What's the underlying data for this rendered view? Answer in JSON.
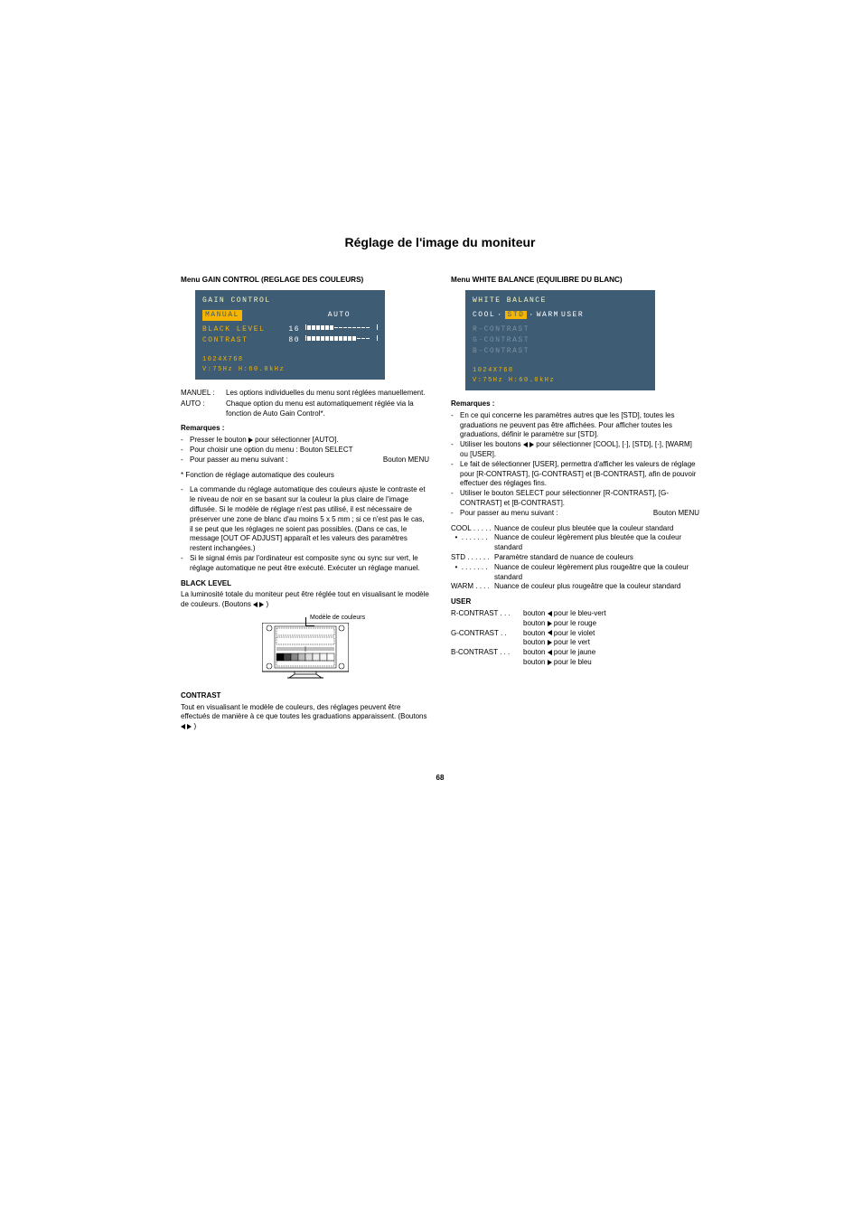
{
  "page": {
    "title": "Réglage de l'image du moniteur",
    "page_number": "68"
  },
  "left": {
    "menu_heading": "Menu GAIN CONTROL (REGLAGE DES COULEURS)",
    "osd": {
      "title": "GAIN CONTROL",
      "mode_manual": "MANUAL",
      "mode_auto": "AUTO",
      "black_level_label": "BLACK LEVEL",
      "black_level_value": "16",
      "black_level_fill": 6,
      "black_level_total": 14,
      "contrast_label": "CONTRAST",
      "contrast_value": "80",
      "contrast_fill": 11,
      "contrast_total": 14,
      "info_line1": "1024X768",
      "info_line2": "V:75Hz   H:60.0kHz"
    },
    "defs": [
      {
        "key": "MANUEL :",
        "val": "Les options individuelles du menu sont réglées manuellement."
      },
      {
        "key": "AUTO :",
        "val": "Chaque option du menu est automatiquement réglée via la fonction de Auto Gain Control*."
      }
    ],
    "remarques_heading": "Remarques :",
    "remarques": [
      {
        "text": "Presser le bouton ▶ pour sélectionner [AUTO]."
      },
      {
        "text": "Pour choisir une option du menu : Bouton SELECT"
      },
      {
        "left": "Pour passer au menu suivant :",
        "right": "Bouton MENU"
      }
    ],
    "auto_fn_heading": "* Fonction de réglage automatique des couleurs",
    "auto_fn_items": [
      "La commande du réglage automatique des couleurs ajuste le contraste et le niveau de noir en se basant sur la couleur la plus claire de l'image diffusée. Si le modèle de réglage n'est pas utilisé, il est nécessaire de préserver une zone de blanc d'au moins 5 x 5 mm ; si ce n'est pas le cas, il se peut que les réglages ne soient pas possibles. (Dans ce cas, le message [OUT OF ADJUST] apparaît et les valeurs des paramètres restent inchangées.)",
      "Si le signal émis par l'ordinateur est composite sync ou sync sur vert, le réglage automatique ne peut être exécuté. Exécuter un réglage manuel."
    ],
    "black_level_heading": "BLACK LEVEL",
    "black_level_text_a": "La luminosité totale du moniteur peut être réglée tout en visualisant le modèle de couleurs. (Boutons ",
    "black_level_text_b": " )",
    "pattern_label": "Modèle de couleurs",
    "contrast_heading": "CONTRAST",
    "contrast_text_a": "Tout en visualisant le modèle de couleurs, des réglages peuvent être effectués de manière à ce que toutes les graduations apparaissent. (Boutons ",
    "contrast_text_b": " )"
  },
  "right": {
    "menu_heading": "Menu WHITE BALANCE (EQUILIBRE DU BLANC)",
    "osd": {
      "title": "WHITE BALANCE",
      "opts": [
        "COOL",
        "·",
        "STD",
        "·",
        "WARM",
        "USER"
      ],
      "selected": "STD",
      "r": "R-CONTRAST",
      "g": "G-CONTRAST",
      "b": "B-CONTRAST",
      "info_line1": "1024X768",
      "info_line2": "V:75Hz   H:60.0kHz"
    },
    "remarques_heading": "Remarques :",
    "remarques": [
      "En ce qui concerne les paramètres autres que les [STD], toutes les graduations ne peuvent pas être affichées. Pour afficher toutes les graduations, définir le paramètre sur [STD].",
      "Utiliser les boutons ◀ ▶ pour sélectionner [COOL], [·], [STD], [·], [WARM] ou [USER].",
      "Le fait de sélectionner [USER], permettra d'afficher les valeurs de réglage pour [R-CONTRAST], [G-CONTRAST] et [B-CONTRAST], afin de pouvoir effectuer des réglages fins.",
      "Utiliser le bouton SELECT pour sélectionner [R-CONTRAST], [G-CONTRAST] et [B-CONTRAST].",
      "__MENU_ROW__"
    ],
    "remarque_menu_left": "Pour passer au menu suivant :",
    "remarque_menu_right": "Bouton MENU",
    "color_defs": [
      {
        "key": "COOL . . . . .",
        "val": "Nuance de couleur plus bleutée que la couleur standard"
      },
      {
        "key": "  •  . . . . . . .",
        "val": "Nuance de couleur légèrement plus bleutée que la couleur standard"
      },
      {
        "key": "STD . . . . . .",
        "val": "Paramètre standard de nuance de couleurs"
      },
      {
        "key": "  •  . . . . . . .",
        "val": "Nuance de couleur légèrement plus rougeâtre que la couleur standard"
      },
      {
        "key": "WARM . . . .",
        "val": "Nuance de couleur plus rougeâtre que la couleur standard"
      }
    ],
    "user_heading": "USER",
    "user_rows": [
      {
        "key": "R-CONTRAST . . .",
        "l1": "bouton ◀ pour le bleu-vert",
        "l2": "bouton ▶ pour le rouge"
      },
      {
        "key": "G-CONTRAST  . .",
        "l1": "bouton ◀ pour le violet",
        "l2": "bouton ▶ pour le vert"
      },
      {
        "key": "B-CONTRAST . . .",
        "l1": "bouton ◀ pour le jaune",
        "l2": "bouton ▶ pour le bleu"
      }
    ]
  }
}
